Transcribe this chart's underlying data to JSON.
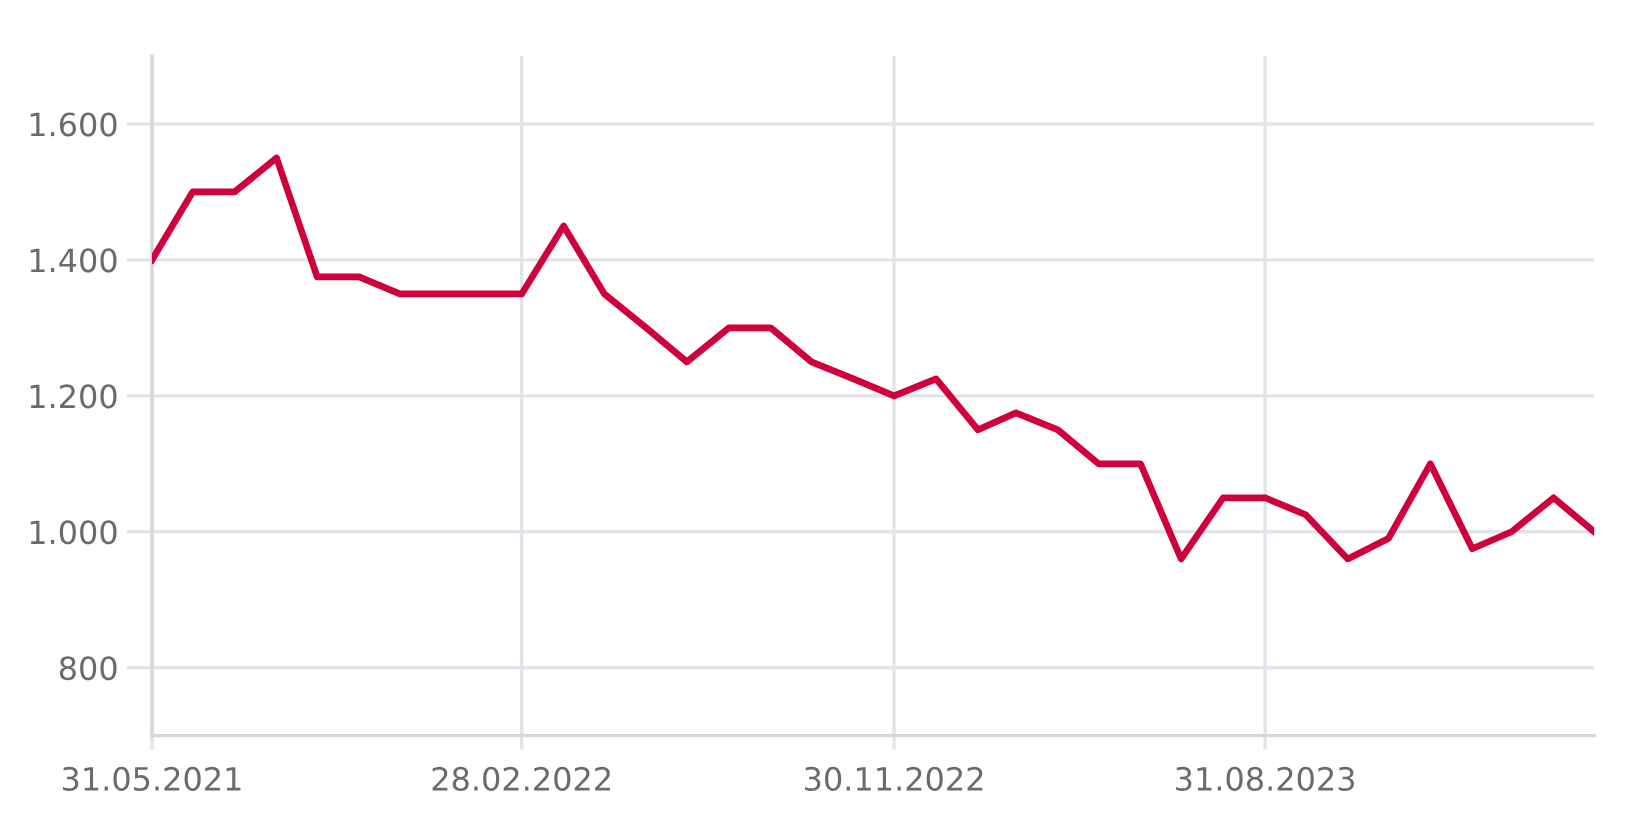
{
  "chart_data": {
    "type": "line",
    "x": [
      "2021-05-31",
      "2021-06-30",
      "2021-07-31",
      "2021-08-31",
      "2021-09-30",
      "2021-10-31",
      "2021-11-30",
      "2021-12-31",
      "2022-01-31",
      "2022-02-28",
      "2022-03-31",
      "2022-04-30",
      "2022-05-31",
      "2022-06-30",
      "2022-07-31",
      "2022-08-31",
      "2022-09-30",
      "2022-10-31",
      "2022-11-30",
      "2022-12-31",
      "2023-01-31",
      "2023-02-28",
      "2023-03-31",
      "2023-04-30",
      "2023-05-31",
      "2023-06-30",
      "2023-07-31",
      "2023-08-31",
      "2023-09-30",
      "2023-10-31",
      "2023-11-30",
      "2023-12-31",
      "2024-01-31",
      "2024-02-29",
      "2024-03-31",
      "2024-04-30"
    ],
    "series": [
      {
        "color": "#d0003c",
        "values": [
          1400,
          1500,
          1500,
          1550,
          1375,
          1375,
          1350,
          1350,
          1350,
          1350,
          1450,
          1350,
          1300,
          1250,
          1300,
          1300,
          1250,
          1225,
          1200,
          1225,
          1150,
          1175,
          1150,
          1100,
          1100,
          960,
          1050,
          1050,
          1025,
          960,
          990,
          1100,
          975,
          1000,
          1050,
          1000
        ]
      }
    ],
    "xlim": [
      "2021-05-31",
      "2024-04-30"
    ],
    "xticks": [
      {
        "value": "2021-05-31",
        "label": "31.05.2021"
      },
      {
        "value": "2022-02-28",
        "label": "28.02.2022"
      },
      {
        "value": "2022-11-30",
        "label": "30.11.2022"
      },
      {
        "value": "2023-08-31",
        "label": "31.08.2023"
      }
    ],
    "ylim": [
      700,
      1700
    ],
    "yticks": [
      800,
      {
        "value": 1000,
        "label": "1.000"
      },
      {
        "value": 1200,
        "label": "1.200"
      },
      {
        "value": 1400,
        "label": "1.400"
      },
      {
        "value": 1600,
        "label": "1.600"
      }
    ],
    "grid": true,
    "marker": "none",
    "line_style": "solid"
  }
}
